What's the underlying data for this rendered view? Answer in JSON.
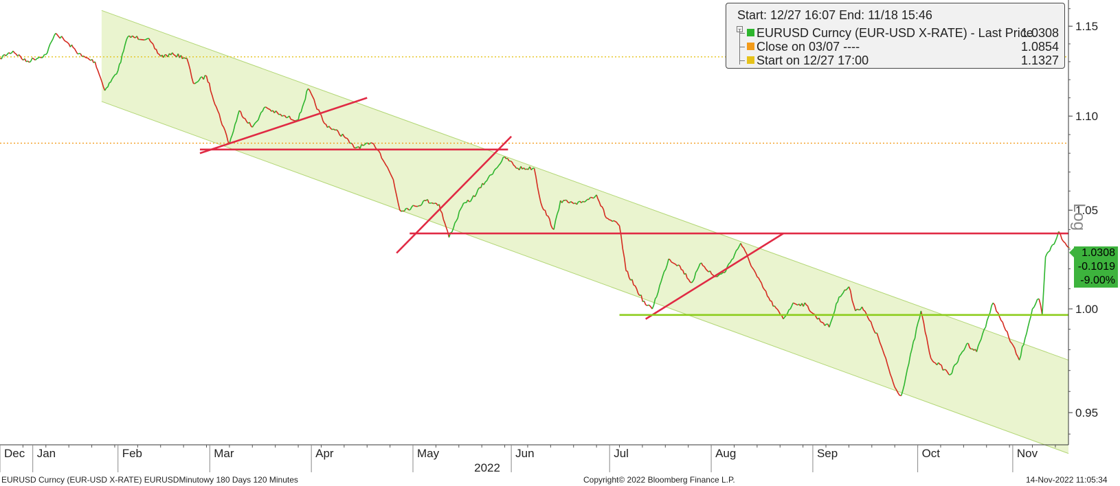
{
  "legend": {
    "header": "Start: 12/27 16:07 End: 11/18 15:46",
    "rows": [
      {
        "label": "EURUSD Curncy (EUR-USD X-RATE) - Last Price",
        "value": "1.0308",
        "color": "#2db52d"
      },
      {
        "label": "Close on 03/07 ----",
        "value": "1.0854",
        "color": "#f39b1a"
      },
      {
        "label": "Start on 12/27 17:00",
        "value": "1.1327",
        "color": "#e6c21a"
      }
    ]
  },
  "scale_label": "Log",
  "last_price_badge": {
    "price": "1.0308",
    "change": "-0.1019",
    "pct": "-9.00%"
  },
  "footer": {
    "left": "EURUSD Curncy (EUR-USD X-RATE) EURUSDMinutowy 180 Days 120 Minutes",
    "center": "Copyright© 2022 Bloomberg Finance L.P.",
    "right": "14-Nov-2022 11:05:34"
  },
  "chart_data": {
    "type": "line",
    "y_scale": "log",
    "y_ticks": [
      "1.15",
      "1.10",
      "1.05",
      "1.00",
      "0.95"
    ],
    "ylim": [
      0.935,
      1.165
    ],
    "xlim": [
      "2021-12-27",
      "2022-11-18"
    ],
    "x_ticks": [
      {
        "label": "Dec",
        "date": "2021-12-27"
      },
      {
        "label": "Jan",
        "date": "2022-01-06"
      },
      {
        "label": "Feb",
        "date": "2022-02-01"
      },
      {
        "label": "Mar",
        "date": "2022-03-01"
      },
      {
        "label": "Apr",
        "date": "2022-04-01"
      },
      {
        "label": "May",
        "date": "2022-05-02"
      },
      {
        "label": "Jun",
        "date": "2022-06-01"
      },
      {
        "label": "Jul",
        "date": "2022-07-01"
      },
      {
        "label": "Aug",
        "date": "2022-08-01"
      },
      {
        "label": "Sep",
        "date": "2022-09-01"
      },
      {
        "label": "Oct",
        "date": "2022-10-03"
      },
      {
        "label": "Nov",
        "date": "2022-11-01"
      }
    ],
    "year_label": "2022",
    "series": [
      {
        "name": "EURUSD Curncy (EUR-USD X-RATE) - Last Price",
        "color": "#2db52d",
        "down_color": "#d42a1f",
        "points": [
          [
            "2021-12-27",
            1.132
          ],
          [
            "2021-12-31",
            1.136
          ],
          [
            "2022-01-04",
            1.13
          ],
          [
            "2022-01-10",
            1.134
          ],
          [
            "2022-01-13",
            1.146
          ],
          [
            "2022-01-17",
            1.14
          ],
          [
            "2022-01-21",
            1.133
          ],
          [
            "2022-01-25",
            1.13
          ],
          [
            "2022-01-28",
            1.114
          ],
          [
            "2022-02-01",
            1.125
          ],
          [
            "2022-02-04",
            1.144
          ],
          [
            "2022-02-10",
            1.143
          ],
          [
            "2022-02-14",
            1.133
          ],
          [
            "2022-02-18",
            1.134
          ],
          [
            "2022-02-22",
            1.132
          ],
          [
            "2022-02-24",
            1.118
          ],
          [
            "2022-02-28",
            1.122
          ],
          [
            "2022-03-03",
            1.105
          ],
          [
            "2022-03-07",
            1.085
          ],
          [
            "2022-03-10",
            1.103
          ],
          [
            "2022-03-14",
            1.094
          ],
          [
            "2022-03-18",
            1.105
          ],
          [
            "2022-03-23",
            1.1
          ],
          [
            "2022-03-28",
            1.098
          ],
          [
            "2022-03-31",
            1.115
          ],
          [
            "2022-04-05",
            1.096
          ],
          [
            "2022-04-11",
            1.089
          ],
          [
            "2022-04-14",
            1.083
          ],
          [
            "2022-04-20",
            1.085
          ],
          [
            "2022-04-22",
            1.08
          ],
          [
            "2022-04-26",
            1.066
          ],
          [
            "2022-04-28",
            1.05
          ],
          [
            "2022-05-03",
            1.052
          ],
          [
            "2022-05-06",
            1.055
          ],
          [
            "2022-05-10",
            1.053
          ],
          [
            "2022-05-13",
            1.036
          ],
          [
            "2022-05-17",
            1.052
          ],
          [
            "2022-05-20",
            1.056
          ],
          [
            "2022-05-25",
            1.067
          ],
          [
            "2022-05-30",
            1.078
          ],
          [
            "2022-06-03",
            1.072
          ],
          [
            "2022-06-08",
            1.072
          ],
          [
            "2022-06-10",
            1.054
          ],
          [
            "2022-06-14",
            1.04
          ],
          [
            "2022-06-16",
            1.055
          ],
          [
            "2022-06-21",
            1.053
          ],
          [
            "2022-06-27",
            1.058
          ],
          [
            "2022-06-30",
            1.046
          ],
          [
            "2022-07-04",
            1.042
          ],
          [
            "2022-07-06",
            1.019
          ],
          [
            "2022-07-12",
            1.002
          ],
          [
            "2022-07-14",
            1.0
          ],
          [
            "2022-07-19",
            1.025
          ],
          [
            "2022-07-22",
            1.022
          ],
          [
            "2022-07-26",
            1.013
          ],
          [
            "2022-07-29",
            1.023
          ],
          [
            "2022-08-02",
            1.016
          ],
          [
            "2022-08-05",
            1.018
          ],
          [
            "2022-08-10",
            1.033
          ],
          [
            "2022-08-15",
            1.016
          ],
          [
            "2022-08-19",
            1.004
          ],
          [
            "2022-08-23",
            0.995
          ],
          [
            "2022-08-26",
            1.003
          ],
          [
            "2022-08-30",
            1.002
          ],
          [
            "2022-09-02",
            0.996
          ],
          [
            "2022-09-06",
            0.991
          ],
          [
            "2022-09-09",
            1.006
          ],
          [
            "2022-09-12",
            1.011
          ],
          [
            "2022-09-14",
            0.999
          ],
          [
            "2022-09-16",
            1.001
          ],
          [
            "2022-09-21",
            0.986
          ],
          [
            "2022-09-26",
            0.962
          ],
          [
            "2022-09-28",
            0.958
          ],
          [
            "2022-10-04",
            0.999
          ],
          [
            "2022-10-07",
            0.976
          ],
          [
            "2022-10-13",
            0.968
          ],
          [
            "2022-10-18",
            0.983
          ],
          [
            "2022-10-21",
            0.979
          ],
          [
            "2022-10-26",
            1.003
          ],
          [
            "2022-10-28",
            0.996
          ],
          [
            "2022-11-03",
            0.975
          ],
          [
            "2022-11-07",
            1.0
          ],
          [
            "2022-11-09",
            1.005
          ],
          [
            "2022-11-10",
            0.997
          ],
          [
            "2022-11-11",
            1.026
          ],
          [
            "2022-11-14",
            1.034
          ],
          [
            "2022-11-15",
            1.039
          ],
          [
            "2022-11-16",
            1.035
          ],
          [
            "2022-11-18",
            1.0308
          ]
        ]
      }
    ],
    "reference_lines": [
      {
        "name": "Close on 03/07",
        "value": 1.0854,
        "color": "#f39b1a"
      },
      {
        "name": "Start on 12/27 17:00",
        "value": 1.1327,
        "color": "#e6c21a"
      }
    ],
    "channel": {
      "color": "#eaf4cf",
      "edge": "#b2d675",
      "upper_start": [
        "2022-01-27",
        1.159
      ],
      "upper_end": [
        "2022-11-18",
        0.975
      ],
      "lower_start": [
        "2022-01-27",
        1.108
      ],
      "lower_end": [
        "2022-11-18",
        0.931
      ]
    },
    "trend_lines": [
      {
        "color": "#e02a44",
        "from": [
          "2022-02-26",
          1.08
        ],
        "to": [
          "2022-04-18",
          1.11
        ]
      },
      {
        "color": "#e02a44",
        "from": [
          "2022-02-26",
          1.082
        ],
        "to": [
          "2022-05-31",
          1.082
        ]
      },
      {
        "color": "#e02a44",
        "from": [
          "2022-05-01",
          1.038
        ],
        "to": [
          "2022-11-18",
          1.038
        ]
      },
      {
        "color": "#e02a44",
        "from": [
          "2022-04-27",
          1.028
        ],
        "to": [
          "2022-06-01",
          1.089
        ]
      },
      {
        "color": "#e02a44",
        "from": [
          "2022-07-12",
          0.995
        ],
        "to": [
          "2022-08-23",
          1.038
        ]
      },
      {
        "color": "#8ccc1c",
        "from": [
          "2022-07-04",
          0.997
        ],
        "to": [
          "2022-11-18",
          0.997
        ]
      }
    ]
  }
}
